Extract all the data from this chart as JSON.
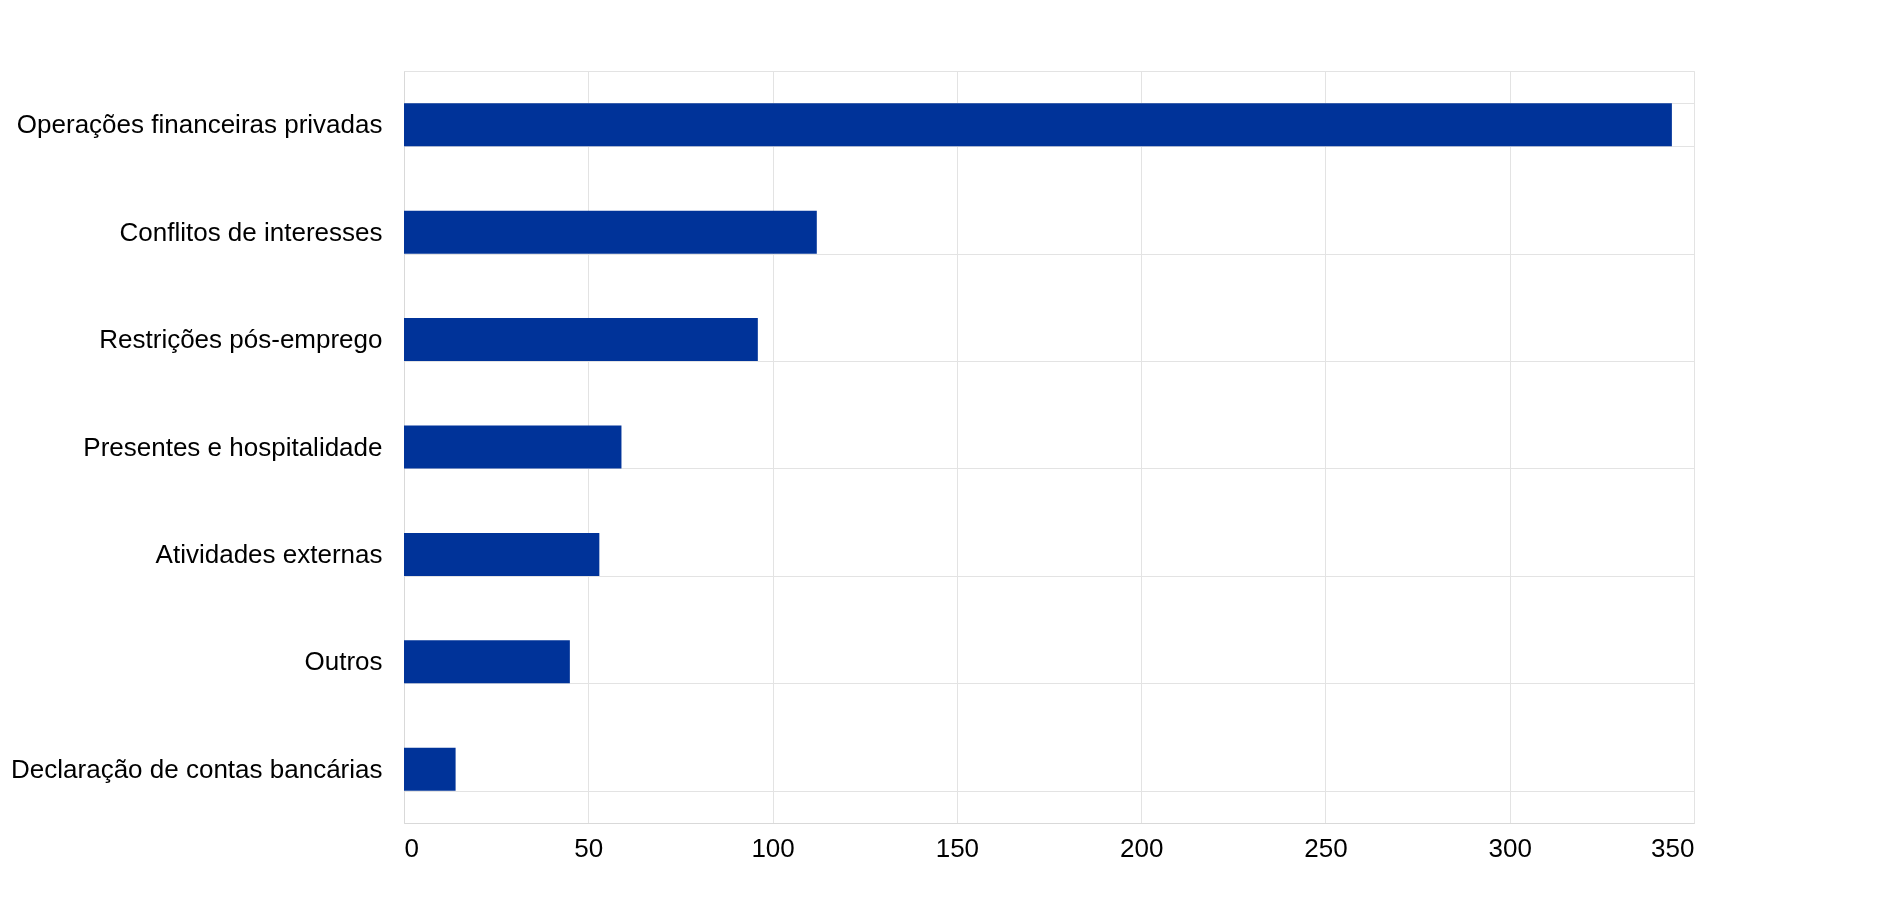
{
  "chart_data": {
    "type": "bar",
    "orientation": "horizontal",
    "categories": [
      "Operações financeiras privadas",
      "Conflitos de interesses",
      "Restrições pós-emprego",
      "Presentes e hospitalidade",
      "Atividades externas",
      "Outros ",
      "Declaração de contas bancárias"
    ],
    "values": [
      344,
      112,
      96,
      59,
      53,
      45,
      14
    ],
    "color": "#003399",
    "xlim": [
      0,
      350
    ],
    "xticks": [
      0,
      50,
      100,
      150,
      200,
      250,
      300,
      350
    ],
    "grid": true
  }
}
